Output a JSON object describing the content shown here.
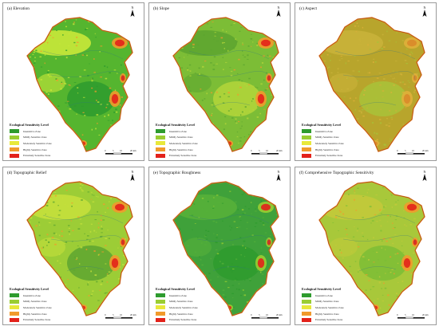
{
  "figure": {
    "panels": [
      {
        "title": "(a) Elevation",
        "theme": "elevation"
      },
      {
        "title": "(b) Slope",
        "theme": "slope"
      },
      {
        "title": "(c) Aspect",
        "theme": "aspect"
      },
      {
        "title": "(d) Topographic Relief",
        "theme": "relief"
      },
      {
        "title": "(e) Topographic Roughness",
        "theme": "roughness"
      },
      {
        "title": "(f) Comprehensive Topographic Sensitivity",
        "theme": "comprehensive"
      }
    ],
    "legend": {
      "title": "Ecological Sensitivity Level",
      "items": [
        {
          "label": "Insensitive Zone",
          "color": "#2e9b2e"
        },
        {
          "label": "Mildly Sensitive Zone",
          "color": "#9acd32"
        },
        {
          "label": "Moderately Sensitive Zone",
          "color": "#e8e83a"
        },
        {
          "label": "Highly Sensitive Zone",
          "color": "#f19a2c"
        },
        {
          "label": "Extremely Sensitive Zone",
          "color": "#e3221b"
        }
      ]
    },
    "north_label": "N",
    "scale": {
      "ticks": [
        "0",
        "5",
        "10",
        "20 km"
      ]
    },
    "theme_colors": {
      "elevation": {
        "base": "#55b52f",
        "patch1": "#c9e83a",
        "patch2": "#2e9b2e",
        "hot": "#e3221b",
        "warm": "#f19a2c"
      },
      "slope": {
        "base": "#7cbd36",
        "patch1": "#5ea530",
        "patch2": "#b4d63a",
        "hot": "#e3221b",
        "warm": "#f19a2c"
      },
      "aspect": {
        "base": "#b8a52c",
        "patch1": "#c9b33a",
        "patch2": "#a8c23a",
        "hot": "#d98a2a",
        "warm": "#e0b03a"
      },
      "relief": {
        "base": "#9ccd36",
        "patch1": "#c5e03c",
        "patch2": "#5ea530",
        "hot": "#e3221b",
        "warm": "#f19a2c"
      },
      "roughness": {
        "base": "#3fa13a",
        "patch1": "#56b03a",
        "patch2": "#2e9b2e",
        "hot": "#e3221b",
        "warm": "#9acd32"
      },
      "comprehensive": {
        "base": "#a8c83a",
        "patch1": "#c2c93b",
        "patch2": "#7cbd36",
        "hot": "#e3221b",
        "warm": "#f19a2c"
      }
    }
  }
}
